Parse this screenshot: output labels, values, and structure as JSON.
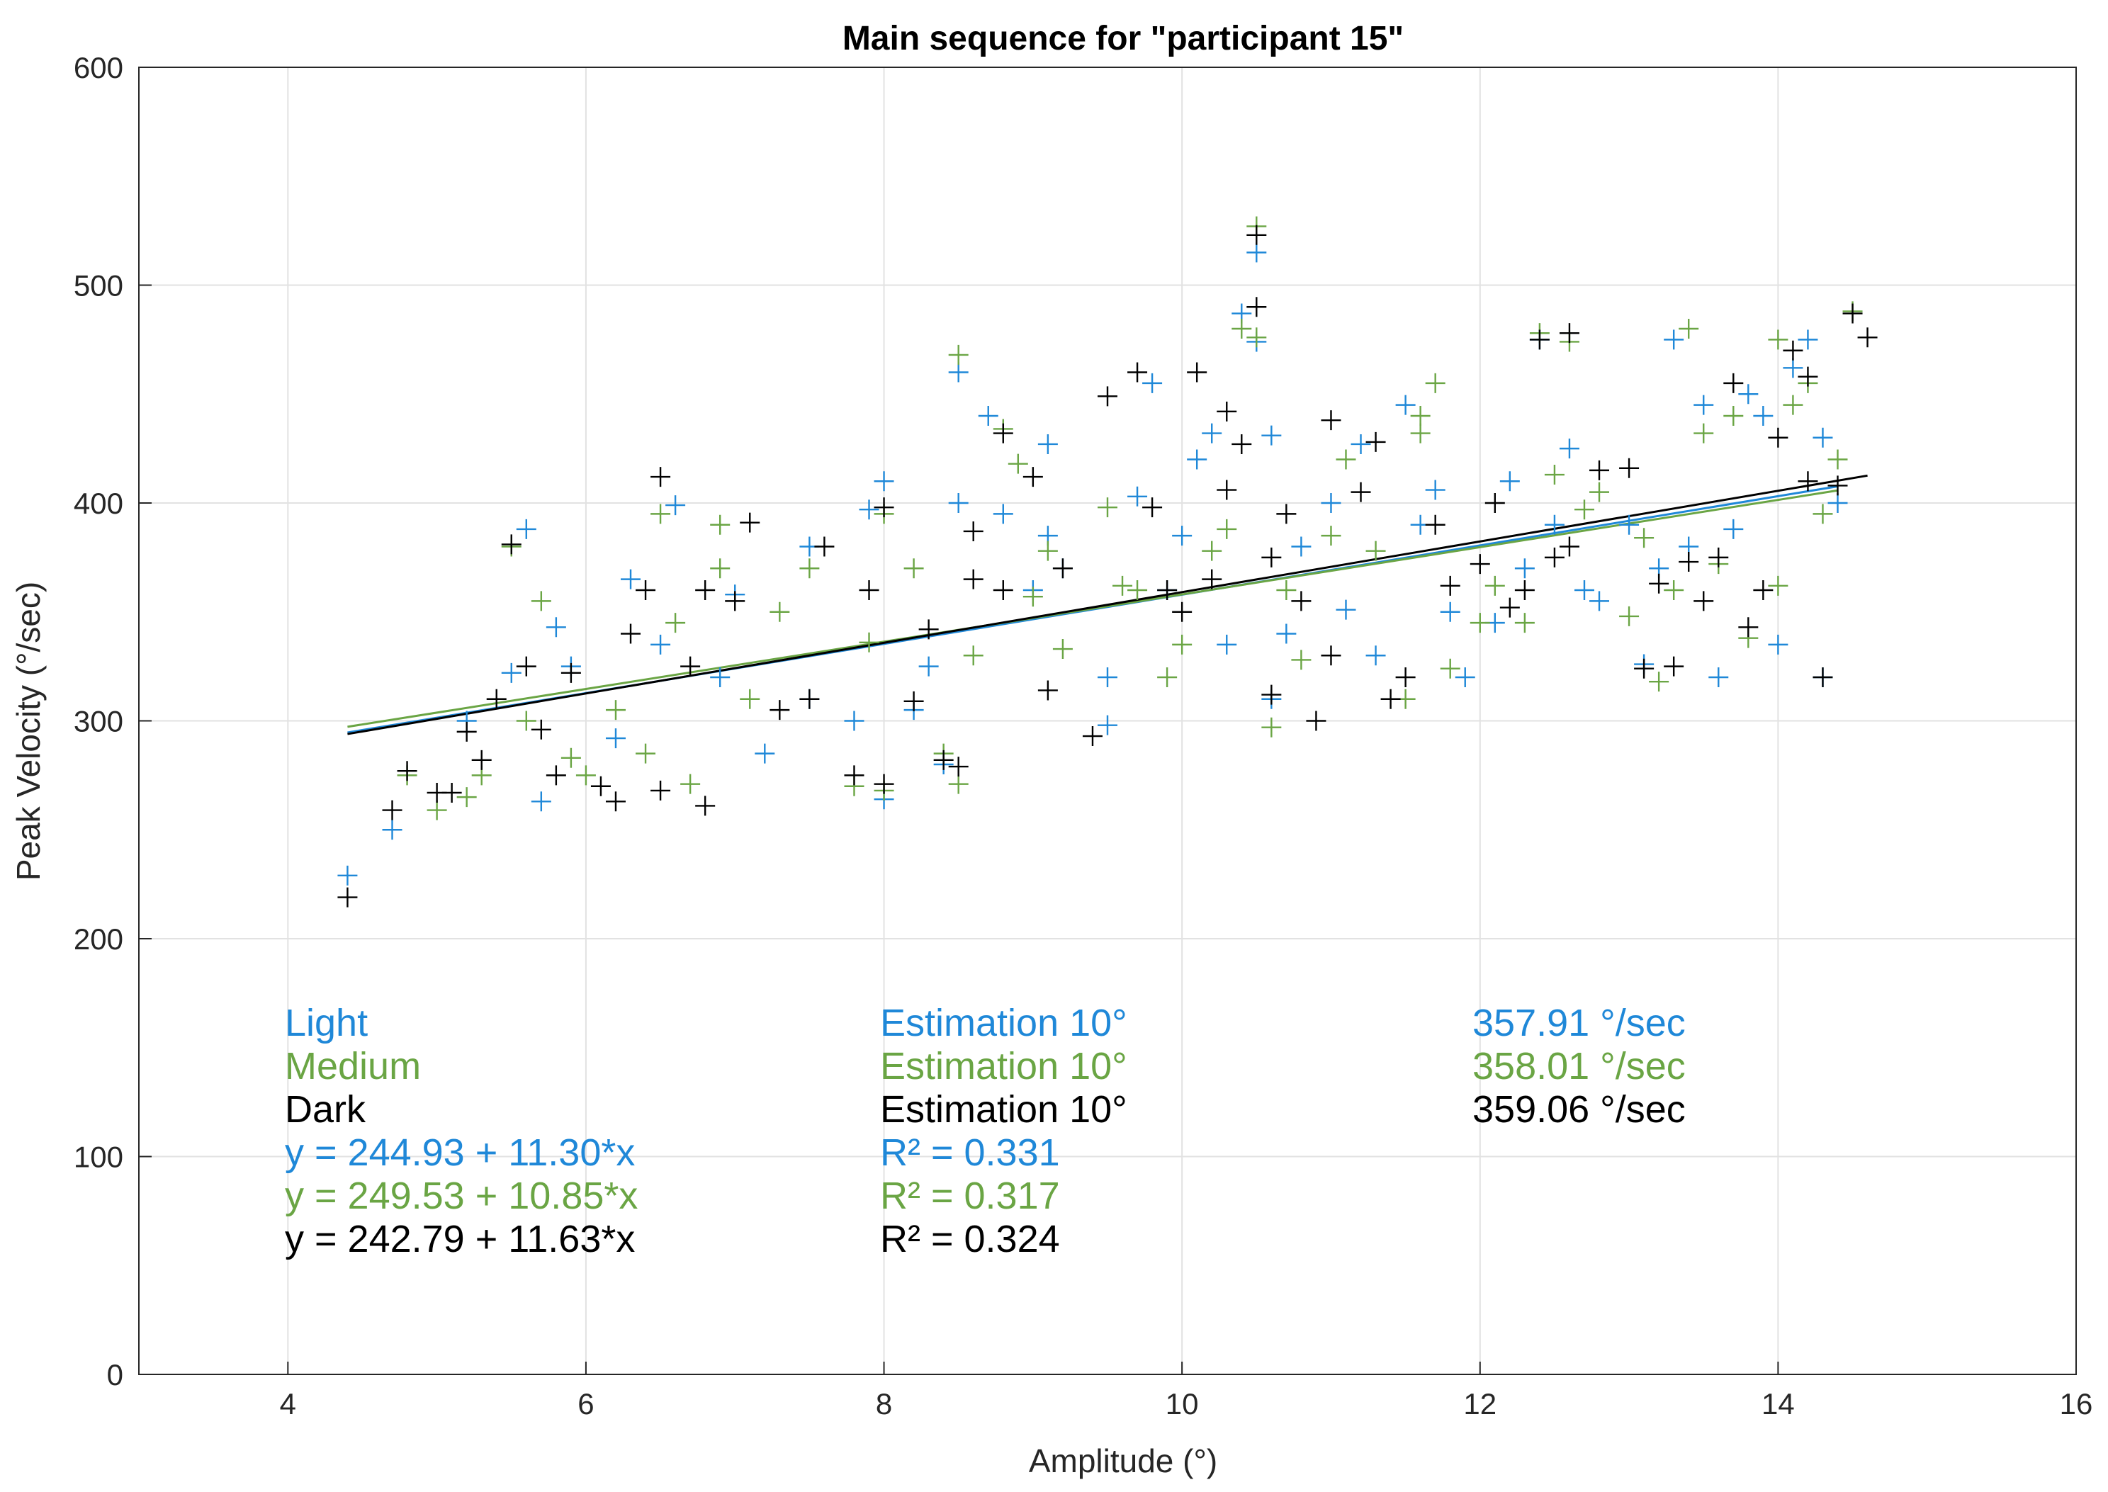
{
  "chart_data": {
    "type": "scatter",
    "title": "Main sequence for \"participant 15\"",
    "xlabel": "Amplitude (°)",
    "ylabel": "Peak Velocity (°/sec)",
    "xlim": [
      3,
      16
    ],
    "ylim": [
      0,
      600
    ],
    "xticks": [
      "4",
      "6",
      "8",
      "10",
      "12",
      "14",
      "16"
    ],
    "xtick_values": [
      4,
      6,
      8,
      10,
      12,
      14,
      16
    ],
    "yticks": [
      "0",
      "100",
      "200",
      "300",
      "400",
      "500",
      "600"
    ],
    "ytick_values": [
      0,
      100,
      200,
      300,
      400,
      500,
      600
    ],
    "grid": true,
    "marker": "+",
    "series": [
      {
        "name": "Light",
        "color": "#1f88d8",
        "fit": {
          "intercept": 244.93,
          "slope": 11.3,
          "x_range": [
            4.4,
            14.4
          ]
        },
        "points": [
          [
            4.4,
            229
          ],
          [
            4.7,
            250
          ],
          [
            5.5,
            322
          ],
          [
            5.6,
            388
          ],
          [
            5.2,
            300
          ],
          [
            5.7,
            263
          ],
          [
            5.8,
            343
          ],
          [
            5.9,
            325
          ],
          [
            6.2,
            292
          ],
          [
            6.3,
            365
          ],
          [
            6.5,
            335
          ],
          [
            6.6,
            399
          ],
          [
            6.9,
            320
          ],
          [
            7.0,
            358
          ],
          [
            7.2,
            285
          ],
          [
            7.5,
            310
          ],
          [
            7.5,
            380
          ],
          [
            7.8,
            300
          ],
          [
            7.9,
            397
          ],
          [
            8.0,
            410
          ],
          [
            8.0,
            264
          ],
          [
            8.2,
            305
          ],
          [
            8.3,
            325
          ],
          [
            8.4,
            280
          ],
          [
            8.5,
            400
          ],
          [
            8.5,
            460
          ],
          [
            8.7,
            440
          ],
          [
            8.8,
            395
          ],
          [
            9.0,
            360
          ],
          [
            9.1,
            385
          ],
          [
            9.1,
            427
          ],
          [
            9.2,
            370
          ],
          [
            9.5,
            320
          ],
          [
            9.5,
            298
          ],
          [
            9.7,
            403
          ],
          [
            9.8,
            455
          ],
          [
            9.9,
            360
          ],
          [
            10.0,
            385
          ],
          [
            10.1,
            420
          ],
          [
            10.2,
            432
          ],
          [
            10.3,
            335
          ],
          [
            10.4,
            487
          ],
          [
            10.5,
            515
          ],
          [
            10.5,
            474
          ],
          [
            10.6,
            431
          ],
          [
            10.6,
            310
          ],
          [
            10.7,
            340
          ],
          [
            10.8,
            380
          ],
          [
            11.0,
            400
          ],
          [
            11.1,
            351
          ],
          [
            11.2,
            427
          ],
          [
            11.3,
            330
          ],
          [
            11.5,
            445
          ],
          [
            11.6,
            390
          ],
          [
            11.7,
            406
          ],
          [
            11.8,
            350
          ],
          [
            11.9,
            320
          ],
          [
            12.1,
            345
          ],
          [
            12.2,
            410
          ],
          [
            12.3,
            370
          ],
          [
            12.4,
            475
          ],
          [
            12.5,
            390
          ],
          [
            12.6,
            425
          ],
          [
            12.7,
            360
          ],
          [
            12.8,
            355
          ],
          [
            13.0,
            390
          ],
          [
            13.1,
            326
          ],
          [
            13.2,
            370
          ],
          [
            13.3,
            475
          ],
          [
            13.4,
            380
          ],
          [
            13.5,
            445
          ],
          [
            13.6,
            320
          ],
          [
            13.7,
            388
          ],
          [
            13.8,
            450
          ],
          [
            13.9,
            440
          ],
          [
            14.0,
            335
          ],
          [
            14.1,
            462
          ],
          [
            14.2,
            475
          ],
          [
            14.3,
            320
          ],
          [
            14.3,
            430
          ],
          [
            14.4,
            400
          ]
        ]
      },
      {
        "name": "Medium",
        "color": "#6aa544",
        "fit": {
          "intercept": 249.53,
          "slope": 10.85,
          "x_range": [
            4.4,
            14.4
          ]
        },
        "points": [
          [
            4.8,
            275
          ],
          [
            5.0,
            259
          ],
          [
            5.2,
            265
          ],
          [
            5.3,
            275
          ],
          [
            5.5,
            380
          ],
          [
            5.6,
            300
          ],
          [
            5.7,
            355
          ],
          [
            5.9,
            283
          ],
          [
            6.0,
            275
          ],
          [
            6.2,
            305
          ],
          [
            6.4,
            285
          ],
          [
            6.5,
            395
          ],
          [
            6.6,
            345
          ],
          [
            6.7,
            271
          ],
          [
            6.9,
            370
          ],
          [
            6.9,
            390
          ],
          [
            7.1,
            310
          ],
          [
            7.3,
            350
          ],
          [
            7.5,
            370
          ],
          [
            7.8,
            270
          ],
          [
            7.9,
            336
          ],
          [
            8.0,
            395
          ],
          [
            8.0,
            268
          ],
          [
            8.2,
            370
          ],
          [
            8.4,
            285
          ],
          [
            8.5,
            271
          ],
          [
            8.5,
            468
          ],
          [
            8.6,
            330
          ],
          [
            8.8,
            434
          ],
          [
            8.9,
            418
          ],
          [
            9.0,
            357
          ],
          [
            9.1,
            378
          ],
          [
            9.2,
            333
          ],
          [
            9.5,
            398
          ],
          [
            9.6,
            362
          ],
          [
            9.7,
            360
          ],
          [
            9.9,
            320
          ],
          [
            10.0,
            335
          ],
          [
            10.2,
            378
          ],
          [
            10.3,
            388
          ],
          [
            10.4,
            480
          ],
          [
            10.5,
            527
          ],
          [
            10.5,
            476
          ],
          [
            10.6,
            297
          ],
          [
            10.7,
            360
          ],
          [
            10.8,
            328
          ],
          [
            11.0,
            385
          ],
          [
            11.1,
            420
          ],
          [
            11.3,
            378
          ],
          [
            11.5,
            310
          ],
          [
            11.6,
            432
          ],
          [
            11.6,
            440
          ],
          [
            11.7,
            455
          ],
          [
            11.8,
            324
          ],
          [
            12.0,
            345
          ],
          [
            12.1,
            362
          ],
          [
            12.3,
            345
          ],
          [
            12.4,
            478
          ],
          [
            12.5,
            413
          ],
          [
            12.6,
            474
          ],
          [
            12.7,
            397
          ],
          [
            12.8,
            405
          ],
          [
            13.0,
            348
          ],
          [
            13.1,
            384
          ],
          [
            13.2,
            318
          ],
          [
            13.3,
            360
          ],
          [
            13.4,
            480
          ],
          [
            13.5,
            432
          ],
          [
            13.6,
            372
          ],
          [
            13.7,
            440
          ],
          [
            13.8,
            338
          ],
          [
            14.0,
            362
          ],
          [
            14.0,
            475
          ],
          [
            14.1,
            445
          ],
          [
            14.2,
            455
          ],
          [
            14.3,
            395
          ],
          [
            14.4,
            420
          ],
          [
            14.5,
            488
          ]
        ]
      },
      {
        "name": "Dark",
        "color": "#000000",
        "fit": {
          "intercept": 242.79,
          "slope": 11.63,
          "x_range": [
            4.4,
            14.6
          ]
        },
        "points": [
          [
            4.4,
            219
          ],
          [
            4.7,
            259
          ],
          [
            4.8,
            277
          ],
          [
            5.0,
            267
          ],
          [
            5.1,
            267
          ],
          [
            5.2,
            295
          ],
          [
            5.3,
            282
          ],
          [
            5.4,
            310
          ],
          [
            5.5,
            381
          ],
          [
            5.6,
            325
          ],
          [
            5.7,
            296
          ],
          [
            5.8,
            275
          ],
          [
            5.9,
            322
          ],
          [
            6.1,
            270
          ],
          [
            6.2,
            263
          ],
          [
            6.3,
            340
          ],
          [
            6.4,
            360
          ],
          [
            6.5,
            412
          ],
          [
            6.5,
            268
          ],
          [
            6.7,
            325
          ],
          [
            6.8,
            261
          ],
          [
            6.8,
            360
          ],
          [
            7.0,
            355
          ],
          [
            7.1,
            391
          ],
          [
            7.3,
            305
          ],
          [
            7.5,
            310
          ],
          [
            7.6,
            380
          ],
          [
            7.8,
            275
          ],
          [
            7.9,
            360
          ],
          [
            8.0,
            398
          ],
          [
            8.0,
            271
          ],
          [
            8.2,
            309
          ],
          [
            8.3,
            342
          ],
          [
            8.4,
            282
          ],
          [
            8.5,
            279
          ],
          [
            8.6,
            387
          ],
          [
            8.6,
            365
          ],
          [
            8.8,
            432
          ],
          [
            8.8,
            360
          ],
          [
            9.0,
            412
          ],
          [
            9.1,
            314
          ],
          [
            9.2,
            370
          ],
          [
            9.4,
            293
          ],
          [
            9.5,
            449
          ],
          [
            9.7,
            460
          ],
          [
            9.8,
            398
          ],
          [
            9.9,
            360
          ],
          [
            10.0,
            350
          ],
          [
            10.1,
            460
          ],
          [
            10.2,
            365
          ],
          [
            10.3,
            442
          ],
          [
            10.3,
            406
          ],
          [
            10.4,
            427
          ],
          [
            10.5,
            523
          ],
          [
            10.5,
            490
          ],
          [
            10.6,
            312
          ],
          [
            10.6,
            375
          ],
          [
            10.7,
            395
          ],
          [
            10.8,
            355
          ],
          [
            10.9,
            300
          ],
          [
            11.0,
            330
          ],
          [
            11.0,
            438
          ],
          [
            11.2,
            405
          ],
          [
            11.3,
            428
          ],
          [
            11.4,
            310
          ],
          [
            11.5,
            320
          ],
          [
            11.7,
            390
          ],
          [
            11.8,
            362
          ],
          [
            12.0,
            372
          ],
          [
            12.1,
            400
          ],
          [
            12.2,
            352
          ],
          [
            12.3,
            360
          ],
          [
            12.4,
            475
          ],
          [
            12.5,
            375
          ],
          [
            12.6,
            478
          ],
          [
            12.6,
            380
          ],
          [
            12.8,
            415
          ],
          [
            13.0,
            416
          ],
          [
            13.1,
            324
          ],
          [
            13.2,
            363
          ],
          [
            13.3,
            325
          ],
          [
            13.4,
            373
          ],
          [
            13.5,
            355
          ],
          [
            13.6,
            375
          ],
          [
            13.7,
            455
          ],
          [
            13.8,
            343
          ],
          [
            13.9,
            360
          ],
          [
            14.0,
            430
          ],
          [
            14.1,
            470
          ],
          [
            14.2,
            410
          ],
          [
            14.2,
            458
          ],
          [
            14.3,
            320
          ],
          [
            14.4,
            408
          ],
          [
            14.6,
            476
          ],
          [
            14.5,
            487
          ]
        ]
      }
    ],
    "annotations": {
      "names": [
        "Light",
        "Medium",
        "Dark"
      ],
      "estimations": [
        "Estimation 10°",
        "Estimation 10°",
        "Estimation 10°"
      ],
      "velocities": [
        "357.91 °/sec",
        "358.01 °/sec",
        "359.06 °/sec"
      ],
      "equations": [
        "y = 244.93 + 11.30*x",
        "y = 249.53 + 10.85*x",
        "y = 242.79 + 11.63*x"
      ],
      "r2": [
        "R² = 0.331",
        "R² = 0.317",
        "R² = 0.324"
      ]
    }
  }
}
